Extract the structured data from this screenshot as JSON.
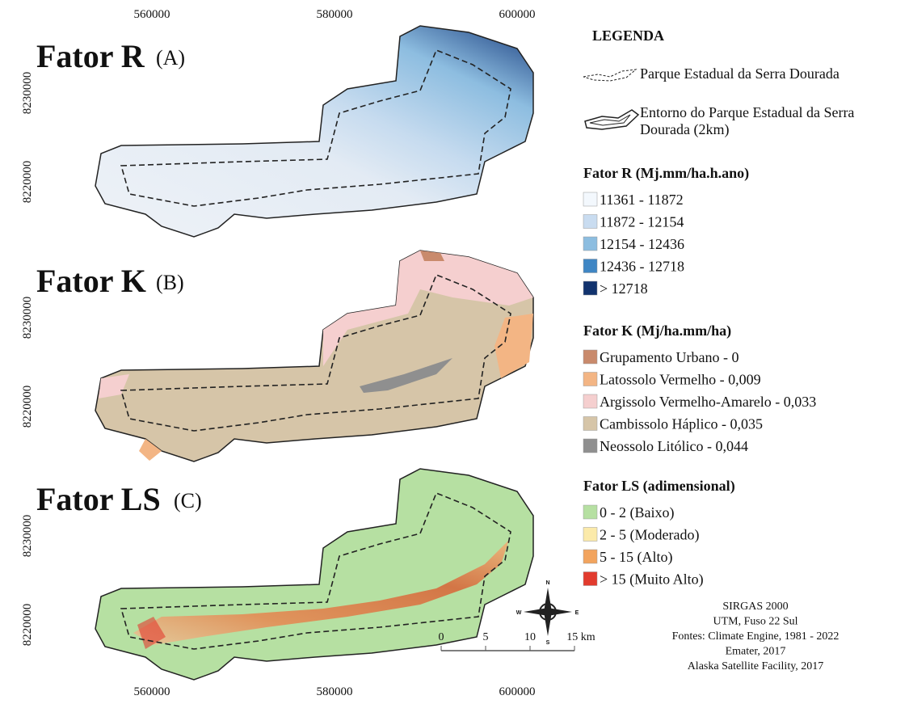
{
  "coordinates": {
    "top": [
      "560000",
      "580000",
      "600000"
    ],
    "bottom": [
      "560000",
      "580000",
      "600000"
    ]
  },
  "panels": [
    {
      "title": "Fator R",
      "label": "(A)",
      "y_labels": [
        "8230000",
        "8220000"
      ]
    },
    {
      "title": "Fator K",
      "label": "(B)",
      "y_labels": [
        "8230000",
        "8220000"
      ]
    },
    {
      "title": "Fator LS",
      "label": "(C)",
      "y_labels": [
        "8230000",
        "8220000"
      ]
    }
  ],
  "legend": {
    "title": "LEGENDA",
    "park": "Parque Estadual da Serra Dourada",
    "buffer": [
      "Entorno do Parque Estadual da Serra",
      "Dourada (2km)"
    ],
    "sections": [
      {
        "title": "Fator R (Mj.mm/ha.h.ano)",
        "items": [
          {
            "label": "11361 - 11872",
            "color": "#f3f8fd"
          },
          {
            "label": "11872 - 12154",
            "color": "#c9dcf0"
          },
          {
            "label": "12154 - 12436",
            "color": "#8cbde0"
          },
          {
            "label": "12436 - 12718",
            "color": "#3f86c4"
          },
          {
            "label": "> 12718",
            "color": "#12336e"
          }
        ]
      },
      {
        "title": "Fator K (Mj/ha.mm/ha)",
        "items": [
          {
            "label": "Grupamento Urbano - 0",
            "color": "#c98a6c"
          },
          {
            "label": "Latossolo Vermelho - 0,009",
            "color": "#f3b584"
          },
          {
            "label": "Argissolo Vermelho-Amarelo - 0,033",
            "color": "#f5cfcf"
          },
          {
            "label": "Cambissolo Háplico - 0,035",
            "color": "#d6c5a8"
          },
          {
            "label": "Neossolo Litólico - 0,044",
            "color": "#8f8f8f"
          }
        ]
      },
      {
        "title": "Fator LS (adimensional)",
        "items": [
          {
            "label": "0 - 2 (Baixo)",
            "color": "#b6e0a2"
          },
          {
            "label": "2 - 5 (Moderado)",
            "color": "#fbeaaa"
          },
          {
            "label": "5 - 15 (Alto)",
            "color": "#f2a45e"
          },
          {
            "label": "> 15 (Muito Alto)",
            "color": "#e23b2e"
          }
        ]
      }
    ]
  },
  "scale_bar": [
    "0",
    "5",
    "10",
    "15 km"
  ],
  "north_arrow": {
    "n": "N",
    "s": "S",
    "w": "W",
    "e": "E"
  },
  "credits": [
    "SIRGAS 2000",
    "UTM, Fuso 22 Sul",
    "Fontes: Climate Engine, 1981 - 2022",
    "Emater, 2017",
    "Alaska Satellite Facility, 2017"
  ]
}
